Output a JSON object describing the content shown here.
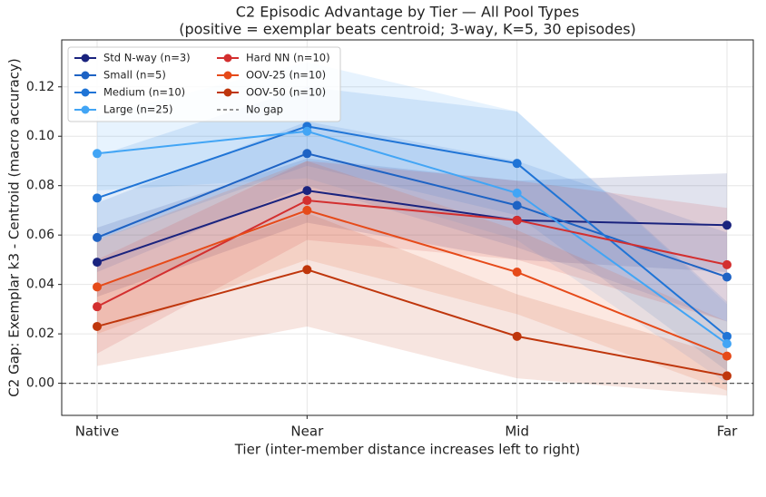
{
  "chart_data": {
    "type": "line",
    "title": "C2 Episodic Advantage by Tier — All Pool Types",
    "subtitle": "(positive = exemplar beats centroid; 3-way, K=5, 30 episodes)",
    "x_label": "Tier (inter-member distance increases left to right)",
    "y_label": "C2 Gap: Exemplar k3 - Centroid (macro accuracy)",
    "categories": [
      "Native",
      "Near",
      "Mid",
      "Far"
    ],
    "ylim": [
      -0.013,
      0.139
    ],
    "yticks": [
      {
        "value": 0,
        "label": "0.00"
      },
      0.02,
      0.04,
      0.06,
      0.08,
      {
        "value": 0.1,
        "label": "0.10"
      },
      0.12
    ],
    "grid": true,
    "legend": "upper left",
    "series": [
      {
        "name": "Std N-way (n=3)",
        "color": "#1a237e",
        "values": [
          0.049,
          0.078,
          0.066,
          0.064
        ],
        "lower": [
          0.035,
          0.065,
          0.05,
          0.045
        ],
        "upper": [
          0.063,
          0.091,
          0.082,
          0.085
        ]
      },
      {
        "name": "Small (n=5)",
        "color": "#1e63c4",
        "values": [
          0.059,
          0.093,
          0.072,
          0.043
        ],
        "lower": [
          0.045,
          0.08,
          0.055,
          0.025
        ],
        "upper": [
          0.073,
          0.106,
          0.09,
          0.061
        ]
      },
      {
        "name": "Medium (n=10)",
        "color": "#1f74d6",
        "values": [
          0.075,
          0.104,
          0.089,
          0.019
        ],
        "lower": [
          0.058,
          0.088,
          0.068,
          0.005
        ],
        "upper": [
          0.092,
          0.12,
          0.11,
          0.033
        ]
      },
      {
        "name": "Large (n=25)",
        "color": "#42a5f5",
        "values": [
          0.093,
          0.102,
          0.077,
          0.016
        ],
        "lower": [
          0.078,
          0.083,
          0.058,
          0.0
        ],
        "upper": [
          0.108,
          0.13,
          0.11,
          0.032
        ]
      },
      {
        "name": "Hard NN (n=10)",
        "color": "#d32f2f",
        "values": [
          0.031,
          0.074,
          0.066,
          0.048
        ],
        "lower": [
          0.012,
          0.058,
          0.05,
          0.025
        ],
        "upper": [
          0.05,
          0.09,
          0.082,
          0.071
        ]
      },
      {
        "name": "OOV-25 (n=10)",
        "color": "#e64a19",
        "values": [
          0.039,
          0.07,
          0.045,
          0.011
        ],
        "lower": [
          0.02,
          0.05,
          0.028,
          -0.003
        ],
        "upper": [
          0.058,
          0.09,
          0.062,
          0.025
        ]
      },
      {
        "name": "OOV-50 (n=10)",
        "color": "#bf360c",
        "values": [
          0.023,
          0.046,
          0.019,
          0.003
        ],
        "lower": [
          0.007,
          0.023,
          0.002,
          -0.005
        ],
        "upper": [
          0.039,
          0.069,
          0.036,
          0.011
        ]
      }
    ],
    "reference_line": {
      "name": "No gap",
      "value": 0,
      "color": "#555555"
    }
  }
}
